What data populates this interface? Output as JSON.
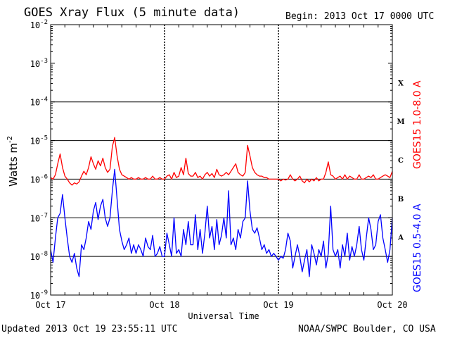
{
  "header": {
    "title": "GOES Xray Flux (5 minute data)",
    "begin": "Begin:  2013 Oct 17 0000 UTC"
  },
  "footer": {
    "updated": "Updated 2013 Oct 19 23:55:11 UTC",
    "credit": "NOAA/SWPC Boulder, CO USA"
  },
  "chart_data": {
    "type": "line",
    "title": "GOES Xray Flux (5 minute data)",
    "xlabel": "Universal Time",
    "ylabel_base": "Watts m",
    "ylabel_sup": "-2",
    "yscale": "log",
    "ylim": [
      1e-09,
      0.01
    ],
    "xlim": [
      0,
      72
    ],
    "x_unit": "hours since 2013 Oct 17 0000 UTC",
    "x_ticks": [
      {
        "x": 0,
        "label": "Oct 17"
      },
      {
        "x": 24,
        "label": "Oct 18"
      },
      {
        "x": 48,
        "label": "Oct 19"
      },
      {
        "x": 72,
        "label": "Oct 20"
      }
    ],
    "y_ticks": [
      {
        "exp": -2,
        "base": "10",
        "sup": "-2"
      },
      {
        "exp": -3,
        "base": "10",
        "sup": "-3"
      },
      {
        "exp": -4,
        "base": "10",
        "sup": "-4"
      },
      {
        "exp": -5,
        "base": "10",
        "sup": "-5"
      },
      {
        "exp": -6,
        "base": "10",
        "sup": "-6"
      },
      {
        "exp": -7,
        "base": "10",
        "sup": "-7"
      },
      {
        "exp": -8,
        "base": "10",
        "sup": "-8"
      },
      {
        "exp": -9,
        "base": "10",
        "sup": "-9"
      }
    ],
    "flare_classes": [
      {
        "label": "X",
        "exp_low": -4
      },
      {
        "label": "M",
        "exp_low": -5
      },
      {
        "label": "C",
        "exp_low": -6
      },
      {
        "label": "B",
        "exp_low": -7
      },
      {
        "label": "A",
        "exp_low": -8
      }
    ],
    "grid": true,
    "series": [
      {
        "name": "GOES15 1.0-8.0 A",
        "color": "#ff0000",
        "x": [
          0,
          0.5,
          1,
          1.5,
          2,
          2.5,
          3,
          3.5,
          4,
          4.5,
          5,
          5.5,
          6,
          6.5,
          7,
          7.5,
          8,
          8.5,
          9,
          9.5,
          10,
          10.5,
          11,
          11.5,
          12,
          12.5,
          13,
          13.5,
          14,
          14.5,
          15,
          15.5,
          16,
          16.5,
          17,
          17.5,
          18,
          18.5,
          19,
          19.5,
          20,
          20.5,
          21,
          21.5,
          22,
          22.5,
          23,
          23.5,
          24,
          24.5,
          25,
          25.5,
          26,
          26.5,
          27,
          27.5,
          28,
          28.5,
          29,
          29.5,
          30,
          30.5,
          31,
          31.5,
          32,
          32.5,
          33,
          33.5,
          34,
          34.5,
          35,
          35.5,
          36,
          36.5,
          37,
          37.5,
          38,
          38.5,
          39,
          39.5,
          40,
          40.5,
          41,
          41.5,
          42,
          42.5,
          43,
          43.5,
          44,
          44.5,
          45,
          45.5,
          46,
          46.5,
          47,
          47.5,
          48,
          48.5,
          49,
          49.5,
          50,
          50.5,
          51,
          51.5,
          52,
          52.5,
          53,
          53.5,
          54,
          54.5,
          55,
          55.5,
          56,
          56.5,
          57,
          57.5,
          58,
          58.5,
          59,
          59.5,
          60,
          60.5,
          61,
          61.5,
          62,
          62.5,
          63,
          63.5,
          64,
          64.5,
          65,
          65.5,
          66,
          66.5,
          67,
          67.5,
          68,
          68.5,
          69,
          69.5,
          70,
          70.5,
          71,
          71.5,
          72
        ],
        "values": [
          1.1e-06,
          1e-06,
          1.3e-06,
          2.5e-06,
          4.5e-06,
          2e-06,
          1.2e-06,
          1e-06,
          8e-07,
          7e-07,
          8e-07,
          7.5e-07,
          8.5e-07,
          1.2e-06,
          1.6e-06,
          1.3e-06,
          2e-06,
          3.8e-06,
          2.5e-06,
          1.8e-06,
          3e-06,
          2.2e-06,
          3.5e-06,
          2e-06,
          1.5e-06,
          1.8e-06,
          7e-06,
          1.2e-05,
          4e-06,
          1.8e-06,
          1.3e-06,
          1.2e-06,
          1.1e-06,
          1e-06,
          1.1e-06,
          1e-06,
          1e-06,
          1.1e-06,
          1e-06,
          1e-06,
          1.1e-06,
          1e-06,
          1e-06,
          1.2e-06,
          1e-06,
          1e-06,
          1.1e-06,
          1e-06,
          1e-06,
          1.2e-06,
          1.3e-06,
          1e-06,
          1.5e-06,
          1.1e-06,
          1.2e-06,
          2e-06,
          1.3e-06,
          3.5e-06,
          1.4e-06,
          1.2e-06,
          1.2e-06,
          1.5e-06,
          1.1e-06,
          1.2e-06,
          1e-06,
          1.3e-06,
          1.5e-06,
          1.2e-06,
          1.4e-06,
          1.1e-06,
          1.8e-06,
          1.3e-06,
          1.2e-06,
          1.3e-06,
          1.5e-06,
          1.3e-06,
          1.6e-06,
          2e-06,
          2.5e-06,
          1.5e-06,
          1.3e-06,
          1.2e-06,
          1.5e-06,
          7.5e-06,
          4e-06,
          2e-06,
          1.5e-06,
          1.3e-06,
          1.2e-06,
          1.2e-06,
          1.1e-06,
          1.1e-06,
          1e-06,
          1e-06,
          1e-06,
          1e-06,
          1e-06,
          9e-07,
          1e-06,
          9.5e-07,
          1e-06,
          1.3e-06,
          1e-06,
          9e-07,
          1e-06,
          1.2e-06,
          9e-07,
          8e-07,
          1e-06,
          8.5e-07,
          1e-06,
          9e-07,
          1.1e-06,
          9e-07,
          1e-06,
          1e-06,
          1.5e-06,
          2.8e-06,
          1.3e-06,
          1.2e-06,
          1e-06,
          1.1e-06,
          1.2e-06,
          1e-06,
          1.3e-06,
          1e-06,
          1.2e-06,
          1.1e-06,
          1e-06,
          1e-06,
          1.3e-06,
          1e-06,
          1e-06,
          1.1e-06,
          1.2e-06,
          1.1e-06,
          1.3e-06,
          1e-06,
          1e-06,
          1.1e-06,
          1.2e-06,
          1.3e-06,
          1.2e-06,
          1.1e-06,
          1.6e-06
        ]
      },
      {
        "name": "GOES15 0.5-4.0 A",
        "color": "#0000ff",
        "x": [
          0,
          0.5,
          1,
          1.5,
          2,
          2.5,
          3,
          3.5,
          4,
          4.5,
          5,
          5.5,
          6,
          6.5,
          7,
          7.5,
          8,
          8.5,
          9,
          9.5,
          10,
          10.5,
          11,
          11.5,
          12,
          12.5,
          13,
          13.5,
          14,
          14.5,
          15,
          15.5,
          16,
          16.5,
          17,
          17.5,
          18,
          18.5,
          19,
          19.5,
          20,
          20.5,
          21,
          21.5,
          22,
          22.5,
          23,
          23.5,
          24,
          24.5,
          25,
          25.5,
          26,
          26.5,
          27,
          27.5,
          28,
          28.5,
          29,
          29.5,
          30,
          30.5,
          31,
          31.5,
          32,
          32.5,
          33,
          33.5,
          34,
          34.5,
          35,
          35.5,
          36,
          36.5,
          37,
          37.5,
          38,
          38.5,
          39,
          39.5,
          40,
          40.5,
          41,
          41.5,
          42,
          42.5,
          43,
          43.5,
          44,
          44.5,
          45,
          45.5,
          46,
          46.5,
          47,
          47.5,
          48,
          48.5,
          49,
          49.5,
          50,
          50.5,
          51,
          51.5,
          52,
          52.5,
          53,
          53.5,
          54,
          54.5,
          55,
          55.5,
          56,
          56.5,
          57,
          57.5,
          58,
          58.5,
          59,
          59.5,
          60,
          60.5,
          61,
          61.5,
          62,
          62.5,
          63,
          63.5,
          64,
          64.5,
          65,
          65.5,
          66,
          66.5,
          67,
          67.5,
          68,
          68.5,
          69,
          69.5,
          70,
          70.5,
          71,
          71.5,
          72
        ],
        "values": [
          1.5e-08,
          7e-09,
          3e-08,
          1e-07,
          1.3e-07,
          4e-07,
          1e-07,
          3e-08,
          1e-08,
          7e-09,
          1.2e-08,
          5e-09,
          3e-09,
          2e-08,
          1.5e-08,
          3e-08,
          8e-08,
          5e-08,
          1.5e-07,
          2.5e-07,
          9e-08,
          2e-07,
          3e-07,
          1e-07,
          6e-08,
          1e-07,
          5e-07,
          1.8e-06,
          3e-07,
          5e-08,
          2.5e-08,
          1.5e-08,
          2e-08,
          3e-08,
          1.2e-08,
          2e-08,
          1.2e-08,
          2e-08,
          1.5e-08,
          1e-08,
          3e-08,
          1.8e-08,
          1.5e-08,
          3.5e-08,
          1e-08,
          1.2e-08,
          1.8e-08,
          1e-08,
          1e-08,
          4e-08,
          2e-08,
          1e-08,
          1e-07,
          1.2e-08,
          1.5e-08,
          1e-08,
          5e-08,
          2e-08,
          8e-08,
          2e-08,
          2e-08,
          1.2e-07,
          1.5e-08,
          5e-08,
          1.2e-08,
          4e-08,
          2e-07,
          3e-08,
          6e-08,
          1.5e-08,
          9e-08,
          2e-08,
          3.5e-08,
          1e-07,
          3e-08,
          5e-07,
          2e-08,
          3e-08,
          1.5e-08,
          5e-08,
          3e-08,
          8e-08,
          1e-07,
          9e-07,
          1.5e-07,
          5e-08,
          4e-08,
          5.5e-08,
          3e-08,
          1.5e-08,
          2e-08,
          1.2e-08,
          1.5e-08,
          1e-08,
          1.2e-08,
          1e-08,
          8e-09,
          1e-08,
          9e-09,
          1.5e-08,
          4e-08,
          2.5e-08,
          5e-09,
          1e-08,
          2e-08,
          1e-08,
          4e-09,
          8e-09,
          1.5e-08,
          3e-09,
          2e-08,
          1.2e-08,
          6e-09,
          1.5e-08,
          1e-08,
          2.5e-08,
          5e-09,
          1.2e-08,
          2e-07,
          1.5e-08,
          1e-08,
          1.5e-08,
          5e-09,
          2e-08,
          1e-08,
          4e-08,
          8e-09,
          1.8e-08,
          1e-08,
          2e-08,
          6e-08,
          1.5e-08,
          8e-09,
          3e-08,
          1e-07,
          5e-08,
          1.5e-08,
          2e-08,
          8e-08,
          1.2e-07,
          3e-08,
          1.5e-08,
          7e-09,
          1.5e-08,
          1e-07
        ]
      }
    ]
  }
}
